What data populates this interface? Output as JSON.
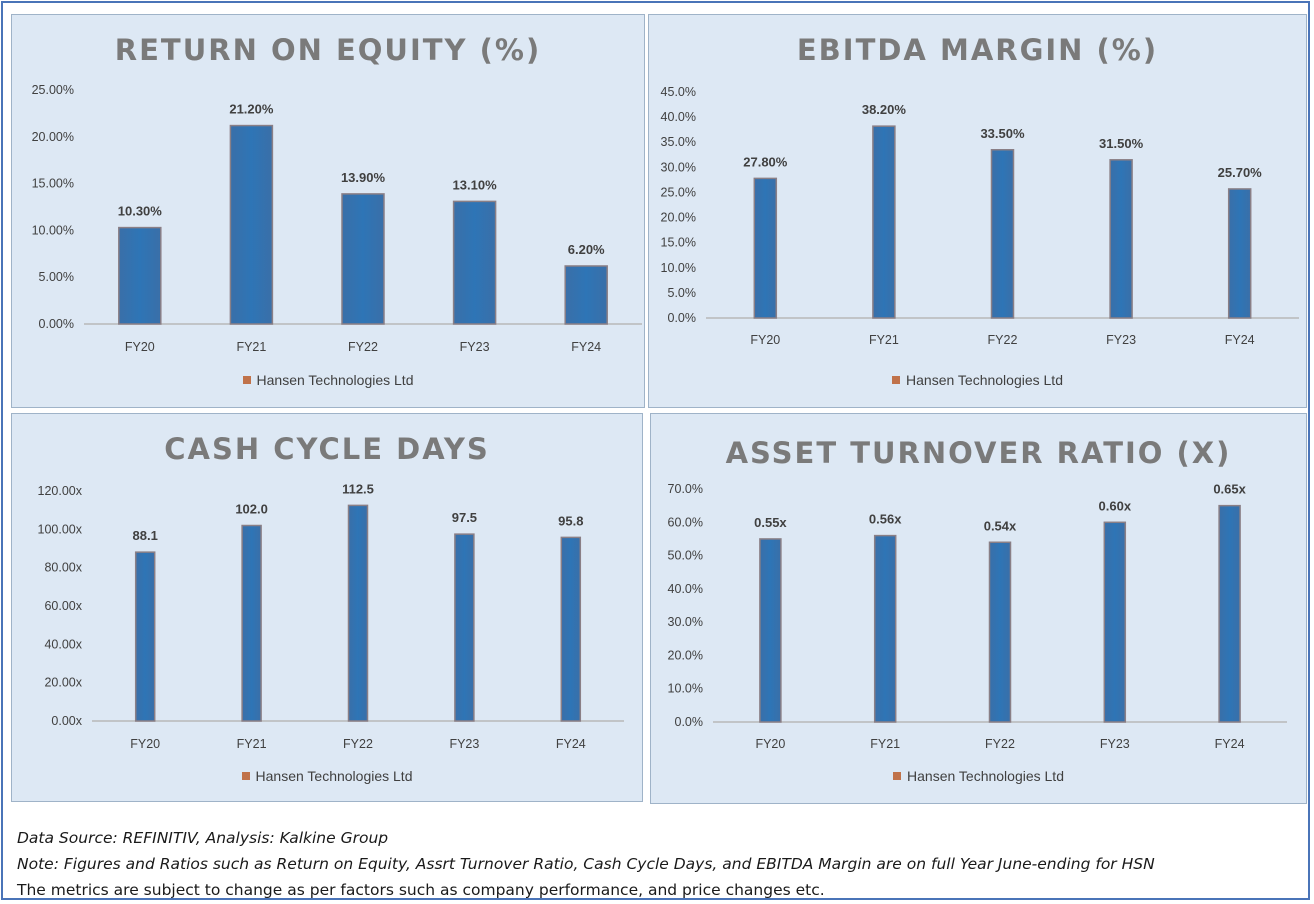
{
  "legend_color": "#c0724a",
  "bar_color": "#2e75b6",
  "panel_bg": "#dde8f4",
  "chart_data": [
    {
      "type": "bar",
      "title": "RETURN ON EQUITY (%)",
      "categories": [
        "FY20",
        "FY21",
        "FY22",
        "FY23",
        "FY24"
      ],
      "series": [
        {
          "name": "Hansen Technologies Ltd",
          "values": [
            10.3,
            21.2,
            13.9,
            13.1,
            6.2
          ]
        }
      ],
      "data_labels": [
        "10.30%",
        "21.20%",
        "13.90%",
        "13.10%",
        "6.20%"
      ],
      "y_ticks": [
        "0.00%",
        "5.00%",
        "10.00%",
        "15.00%",
        "20.00%",
        "25.00%"
      ],
      "ylim": [
        0,
        25
      ],
      "grid": false,
      "legend_position": "bottom"
    },
    {
      "type": "bar",
      "title": "EBITDA MARGIN (%)",
      "categories": [
        "FY20",
        "FY21",
        "FY22",
        "FY23",
        "FY24"
      ],
      "series": [
        {
          "name": "Hansen Technologies Ltd",
          "values": [
            27.8,
            38.2,
            33.5,
            31.5,
            25.7
          ]
        }
      ],
      "data_labels": [
        "27.80%",
        "38.20%",
        "33.50%",
        "31.50%",
        "25.70%"
      ],
      "y_ticks": [
        "0.0%",
        "5.0%",
        "10.0%",
        "15.0%",
        "20.0%",
        "25.0%",
        "30.0%",
        "35.0%",
        "40.0%",
        "45.0%"
      ],
      "ylim": [
        0,
        45
      ],
      "grid": false,
      "legend_position": "bottom"
    },
    {
      "type": "bar",
      "title": "CASH CYCLE DAYS",
      "categories": [
        "FY20",
        "FY21",
        "FY22",
        "FY23",
        "FY24"
      ],
      "series": [
        {
          "name": "Hansen Technologies Ltd",
          "values": [
            88.1,
            102.0,
            112.5,
            97.5,
            95.8
          ]
        }
      ],
      "data_labels": [
        "88.1",
        "102.0",
        "112.5",
        "97.5",
        "95.8"
      ],
      "y_ticks": [
        "0.00x",
        "20.00x",
        "40.00x",
        "60.00x",
        "80.00x",
        "100.00x",
        "120.00x"
      ],
      "ylim": [
        0,
        120
      ],
      "grid": false,
      "legend_position": "bottom"
    },
    {
      "type": "bar",
      "title": "ASSET TURNOVER RATIO (X)",
      "categories": [
        "FY20",
        "FY21",
        "FY22",
        "FY23",
        "FY24"
      ],
      "series": [
        {
          "name": "Hansen Technologies Ltd",
          "values": [
            0.55,
            0.56,
            0.54,
            0.6,
            0.65
          ]
        }
      ],
      "data_labels": [
        "0.55x",
        "0.56x",
        "0.54x",
        "0.60x",
        "0.65x"
      ],
      "y_ticks": [
        "0.0%",
        "10.0%",
        "20.0%",
        "30.0%",
        "40.0%",
        "50.0%",
        "60.0%",
        "70.0%"
      ],
      "ylim": [
        0,
        0.7
      ],
      "grid": false,
      "legend_position": "bottom"
    }
  ],
  "notes": {
    "source": "Data Source: REFINITIV, Analysis: Kalkine Group",
    "note": "Note: Figures and Ratios such as Return on Equity, Assrt Turnover Ratio, Cash Cycle Days, and EBITDA Margin are on full Year June-ending for HSN",
    "disclaimer": "The metrics are subject to change as per factors such as company performance, and price changes etc."
  }
}
